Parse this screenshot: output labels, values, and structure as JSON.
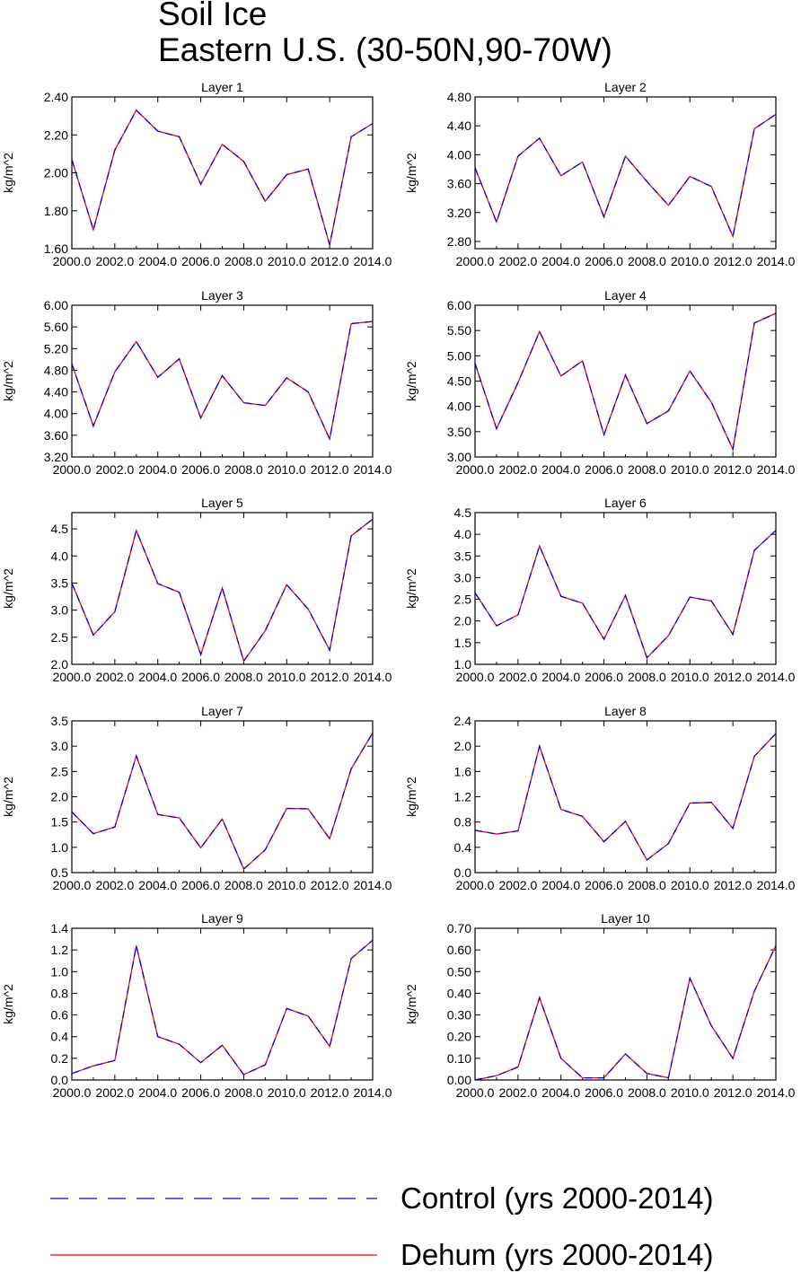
{
  "title_lines": [
    "Soil Ice",
    "Eastern U.S. (30-50N,90-70W)"
  ],
  "colors": {
    "control": "#0000ff",
    "dehum": "#ff0000",
    "axis": "#000000"
  },
  "legend": [
    {
      "label": "Control (yrs 2000-2014)",
      "style": "dashed",
      "color": "#0000ff"
    },
    {
      "label": "Dehum (yrs 2000-2014)",
      "style": "solid",
      "color": "#ff0000"
    }
  ],
  "chart_data": [
    {
      "type": "line",
      "title": "Layer 1",
      "ylabel": "kg/m^2",
      "x": [
        2000,
        2001,
        2002,
        2003,
        2004,
        2005,
        2006,
        2007,
        2008,
        2009,
        2010,
        2011,
        2012,
        2013,
        2014
      ],
      "xlim": [
        2000,
        2014
      ],
      "xticks": [
        "2000.0",
        "2002.0",
        "2004.0",
        "2006.0",
        "2008.0",
        "2010.0",
        "2012.0",
        "2014.0"
      ],
      "ylim": [
        1.6,
        2.4
      ],
      "yticks": [
        "1.60",
        "1.80",
        "2.00",
        "2.20",
        "2.40"
      ],
      "series": [
        {
          "name": "Control (yrs 2000-2014)",
          "values": [
            2.07,
            1.7,
            2.12,
            2.33,
            2.22,
            2.19,
            1.94,
            2.15,
            2.06,
            1.85,
            1.99,
            2.02,
            1.62,
            2.19,
            2.26
          ]
        },
        {
          "name": "Dehum (yrs 2000-2014)",
          "values": [
            2.07,
            1.7,
            2.12,
            2.33,
            2.22,
            2.19,
            1.94,
            2.15,
            2.06,
            1.85,
            1.99,
            2.02,
            1.62,
            2.19,
            2.26
          ]
        }
      ]
    },
    {
      "type": "line",
      "title": "Layer 2",
      "ylabel": "kg/m^2",
      "x": [
        2000,
        2001,
        2002,
        2003,
        2004,
        2005,
        2006,
        2007,
        2008,
        2009,
        2010,
        2011,
        2012,
        2013,
        2014
      ],
      "xlim": [
        2000,
        2014
      ],
      "xticks": [
        "2000.0",
        "2002.0",
        "2004.0",
        "2006.0",
        "2008.0",
        "2010.0",
        "2012.0",
        "2014.0"
      ],
      "ylim": [
        2.7,
        4.8
      ],
      "yticks": [
        "2.80",
        "3.20",
        "3.60",
        "4.00",
        "4.40",
        "4.80"
      ],
      "series": [
        {
          "name": "Control (yrs 2000-2014)",
          "values": [
            3.82,
            3.07,
            3.98,
            4.23,
            3.71,
            3.9,
            3.14,
            3.98,
            3.63,
            3.3,
            3.7,
            3.56,
            2.87,
            4.36,
            4.56
          ]
        },
        {
          "name": "Dehum (yrs 2000-2014)",
          "values": [
            3.82,
            3.07,
            3.98,
            4.23,
            3.71,
            3.9,
            3.14,
            3.98,
            3.63,
            3.3,
            3.7,
            3.56,
            2.87,
            4.36,
            4.56
          ]
        }
      ]
    },
    {
      "type": "line",
      "title": "Layer 3",
      "ylabel": "kg/m^2",
      "x": [
        2000,
        2001,
        2002,
        2003,
        2004,
        2005,
        2006,
        2007,
        2008,
        2009,
        2010,
        2011,
        2012,
        2013,
        2014
      ],
      "xlim": [
        2000,
        2014
      ],
      "xticks": [
        "2000.0",
        "2002.0",
        "2004.0",
        "2006.0",
        "2008.0",
        "2010.0",
        "2012.0",
        "2014.0"
      ],
      "ylim": [
        3.2,
        6.0
      ],
      "yticks": [
        "3.20",
        "3.60",
        "4.00",
        "4.40",
        "4.80",
        "5.20",
        "5.60",
        "6.00"
      ],
      "series": [
        {
          "name": "Control (yrs 2000-2014)",
          "values": [
            4.92,
            3.77,
            4.77,
            5.33,
            4.67,
            5.01,
            3.92,
            4.7,
            4.2,
            4.15,
            4.66,
            4.4,
            3.53,
            5.66,
            5.7
          ]
        },
        {
          "name": "Dehum (yrs 2000-2014)",
          "values": [
            4.92,
            3.77,
            4.77,
            5.33,
            4.67,
            5.01,
            3.92,
            4.7,
            4.2,
            4.15,
            4.66,
            4.4,
            3.53,
            5.66,
            5.7
          ]
        }
      ]
    },
    {
      "type": "line",
      "title": "Layer 4",
      "ylabel": "kg/m^2",
      "x": [
        2000,
        2001,
        2002,
        2003,
        2004,
        2005,
        2006,
        2007,
        2008,
        2009,
        2010,
        2011,
        2012,
        2013,
        2014
      ],
      "xlim": [
        2000,
        2014
      ],
      "xticks": [
        "2000.0",
        "2002.0",
        "2004.0",
        "2006.0",
        "2008.0",
        "2010.0",
        "2012.0",
        "2014.0"
      ],
      "ylim": [
        3.0,
        6.0
      ],
      "yticks": [
        "3.00",
        "3.50",
        "4.00",
        "4.50",
        "5.00",
        "5.50",
        "6.00"
      ],
      "series": [
        {
          "name": "Control (yrs 2000-2014)",
          "values": [
            4.85,
            3.56,
            4.47,
            5.48,
            4.6,
            4.9,
            3.44,
            4.62,
            3.66,
            3.91,
            4.7,
            4.08,
            3.15,
            5.65,
            5.84
          ]
        },
        {
          "name": "Dehum (yrs 2000-2014)",
          "values": [
            4.85,
            3.56,
            4.47,
            5.48,
            4.6,
            4.9,
            3.44,
            4.62,
            3.66,
            3.91,
            4.7,
            4.08,
            3.15,
            5.65,
            5.84
          ]
        }
      ]
    },
    {
      "type": "line",
      "title": "Layer 5",
      "ylabel": "kg/m^2",
      "x": [
        2000,
        2001,
        2002,
        2003,
        2004,
        2005,
        2006,
        2007,
        2008,
        2009,
        2010,
        2011,
        2012,
        2013,
        2014
      ],
      "xlim": [
        2000,
        2014
      ],
      "xticks": [
        "2000.0",
        "2002.0",
        "2004.0",
        "2006.0",
        "2008.0",
        "2010.0",
        "2012.0",
        "2014.0"
      ],
      "ylim": [
        2.0,
        4.8
      ],
      "yticks": [
        "2.0",
        "2.5",
        "3.0",
        "3.5",
        "4.0",
        "4.5"
      ],
      "series": [
        {
          "name": "Control (yrs 2000-2014)",
          "values": [
            3.5,
            2.54,
            2.97,
            4.47,
            3.49,
            3.33,
            2.18,
            3.41,
            2.06,
            2.62,
            3.47,
            3.02,
            2.26,
            4.37,
            4.68
          ]
        },
        {
          "name": "Dehum (yrs 2000-2014)",
          "values": [
            3.5,
            2.54,
            2.97,
            4.47,
            3.49,
            3.33,
            2.18,
            3.41,
            2.06,
            2.62,
            3.47,
            3.02,
            2.26,
            4.37,
            4.68
          ]
        }
      ]
    },
    {
      "type": "line",
      "title": "Layer 6",
      "ylabel": "kg/m^2",
      "x": [
        2000,
        2001,
        2002,
        2003,
        2004,
        2005,
        2006,
        2007,
        2008,
        2009,
        2010,
        2011,
        2012,
        2013,
        2014
      ],
      "xlim": [
        2000,
        2014
      ],
      "xticks": [
        "2000.0",
        "2002.0",
        "2004.0",
        "2006.0",
        "2008.0",
        "2010.0",
        "2012.0",
        "2014.0"
      ],
      "ylim": [
        1.0,
        4.5
      ],
      "yticks": [
        "1.0",
        "1.5",
        "2.0",
        "2.5",
        "3.0",
        "3.5",
        "4.0",
        "4.5"
      ],
      "series": [
        {
          "name": "Control (yrs 2000-2014)",
          "values": [
            2.65,
            1.89,
            2.14,
            3.73,
            2.57,
            2.41,
            1.58,
            2.59,
            1.15,
            1.66,
            2.55,
            2.46,
            1.69,
            3.63,
            4.09
          ]
        },
        {
          "name": "Dehum (yrs 2000-2014)",
          "values": [
            2.65,
            1.89,
            2.14,
            3.73,
            2.57,
            2.41,
            1.58,
            2.59,
            1.15,
            1.66,
            2.55,
            2.46,
            1.69,
            3.63,
            4.09
          ]
        }
      ]
    },
    {
      "type": "line",
      "title": "Layer 7",
      "ylabel": "kg/m^2",
      "x": [
        2000,
        2001,
        2002,
        2003,
        2004,
        2005,
        2006,
        2007,
        2008,
        2009,
        2010,
        2011,
        2012,
        2013,
        2014
      ],
      "xlim": [
        2000,
        2014
      ],
      "xticks": [
        "2000.0",
        "2002.0",
        "2004.0",
        "2006.0",
        "2008.0",
        "2010.0",
        "2012.0",
        "2014.0"
      ],
      "ylim": [
        0.5,
        3.5
      ],
      "yticks": [
        "0.5",
        "1.0",
        "1.5",
        "2.0",
        "2.5",
        "3.0",
        "3.5"
      ],
      "series": [
        {
          "name": "Control (yrs 2000-2014)",
          "values": [
            1.7,
            1.27,
            1.4,
            2.81,
            1.65,
            1.58,
            0.99,
            1.56,
            0.57,
            0.95,
            1.77,
            1.76,
            1.17,
            2.55,
            3.26
          ]
        },
        {
          "name": "Dehum (yrs 2000-2014)",
          "values": [
            1.7,
            1.27,
            1.4,
            2.81,
            1.65,
            1.58,
            0.99,
            1.56,
            0.57,
            0.95,
            1.77,
            1.76,
            1.17,
            2.55,
            3.26
          ]
        }
      ]
    },
    {
      "type": "line",
      "title": "Layer 8",
      "ylabel": "kg/m^2",
      "x": [
        2000,
        2001,
        2002,
        2003,
        2004,
        2005,
        2006,
        2007,
        2008,
        2009,
        2010,
        2011,
        2012,
        2013,
        2014
      ],
      "xlim": [
        2000,
        2014
      ],
      "xticks": [
        "2000.0",
        "2002.0",
        "2004.0",
        "2006.0",
        "2008.0",
        "2010.0",
        "2012.0",
        "2014.0"
      ],
      "ylim": [
        0.0,
        2.4
      ],
      "yticks": [
        "0.0",
        "0.4",
        "0.8",
        "1.2",
        "1.6",
        "2.0",
        "2.4"
      ],
      "series": [
        {
          "name": "Control (yrs 2000-2014)",
          "values": [
            0.67,
            0.61,
            0.66,
            2.0,
            1.0,
            0.89,
            0.49,
            0.81,
            0.2,
            0.46,
            1.1,
            1.11,
            0.7,
            1.84,
            2.2
          ]
        },
        {
          "name": "Dehum (yrs 2000-2014)",
          "values": [
            0.67,
            0.61,
            0.66,
            2.0,
            1.0,
            0.89,
            0.49,
            0.81,
            0.2,
            0.46,
            1.1,
            1.11,
            0.7,
            1.84,
            2.2
          ]
        }
      ]
    },
    {
      "type": "line",
      "title": "Layer 9",
      "ylabel": "kg/m^2",
      "x": [
        2000,
        2001,
        2002,
        2003,
        2004,
        2005,
        2006,
        2007,
        2008,
        2009,
        2010,
        2011,
        2012,
        2013,
        2014
      ],
      "xlim": [
        2000,
        2014
      ],
      "xticks": [
        "2000.0",
        "2002.0",
        "2004.0",
        "2006.0",
        "2008.0",
        "2010.0",
        "2012.0",
        "2014.0"
      ],
      "ylim": [
        0.0,
        1.4
      ],
      "yticks": [
        "0.0",
        "0.2",
        "0.4",
        "0.6",
        "0.8",
        "1.0",
        "1.2",
        "1.4"
      ],
      "series": [
        {
          "name": "Control (yrs 2000-2014)",
          "values": [
            0.06,
            0.13,
            0.18,
            1.24,
            0.4,
            0.33,
            0.16,
            0.32,
            0.05,
            0.14,
            0.66,
            0.59,
            0.31,
            1.12,
            1.29
          ]
        },
        {
          "name": "Dehum (yrs 2000-2014)",
          "values": [
            0.06,
            0.13,
            0.18,
            1.24,
            0.4,
            0.33,
            0.16,
            0.32,
            0.05,
            0.14,
            0.66,
            0.59,
            0.31,
            1.12,
            1.29
          ]
        }
      ]
    },
    {
      "type": "line",
      "title": "Layer 10",
      "ylabel": "kg/m^2",
      "x": [
        2000,
        2001,
        2002,
        2003,
        2004,
        2005,
        2006,
        2007,
        2008,
        2009,
        2010,
        2011,
        2012,
        2013,
        2014
      ],
      "xlim": [
        2000,
        2014
      ],
      "xticks": [
        "2000.0",
        "2002.0",
        "2004.0",
        "2006.0",
        "2008.0",
        "2010.0",
        "2012.0",
        "2014.0"
      ],
      "ylim": [
        0.0,
        0.7
      ],
      "yticks": [
        "0.00",
        "0.10",
        "0.20",
        "0.30",
        "0.40",
        "0.50",
        "0.60",
        "0.70"
      ],
      "series": [
        {
          "name": "Control (yrs 2000-2014)",
          "values": [
            0.0,
            0.02,
            0.06,
            0.38,
            0.1,
            0.01,
            0.01,
            0.12,
            0.03,
            0.01,
            0.47,
            0.25,
            0.1,
            0.41,
            0.62
          ]
        },
        {
          "name": "Dehum (yrs 2000-2014)",
          "values": [
            0.0,
            0.02,
            0.06,
            0.38,
            0.1,
            0.01,
            0.01,
            0.12,
            0.03,
            0.01,
            0.47,
            0.25,
            0.1,
            0.41,
            0.62
          ]
        }
      ]
    }
  ]
}
